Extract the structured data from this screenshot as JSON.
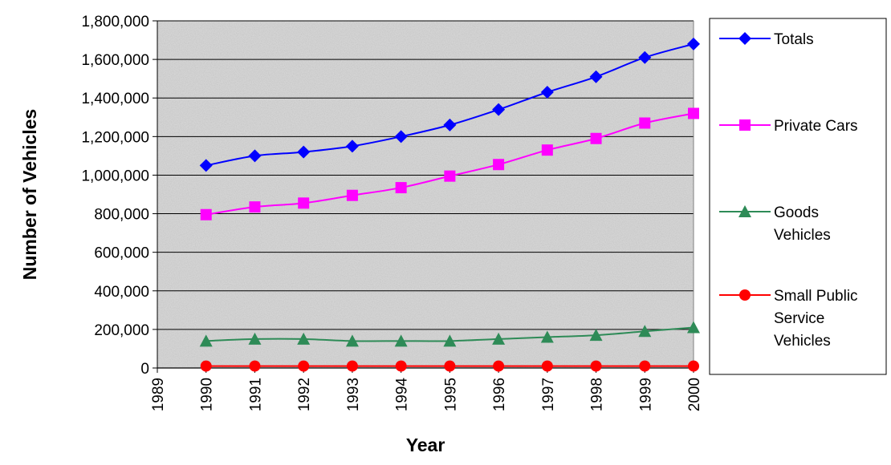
{
  "chart_data": {
    "type": "line",
    "title": "",
    "xlabel": "Year",
    "ylabel": "Number of Vehicles",
    "x": [
      1990,
      1991,
      1992,
      1993,
      1994,
      1995,
      1996,
      1997,
      1998,
      1999,
      2000
    ],
    "x_ticks": [
      "1989",
      "1990",
      "1991",
      "1992",
      "1993",
      "1994",
      "1995",
      "1996",
      "1997",
      "1998",
      "1999",
      "2000"
    ],
    "xlim": [
      1989,
      2000
    ],
    "ylim": [
      0,
      1800000
    ],
    "y_ticks": [
      "0",
      "200,000",
      "400,000",
      "600,000",
      "800,000",
      "1,000,000",
      "1,200,000",
      "1,400,000",
      "1,600,000",
      "1,800,000"
    ],
    "grid": true,
    "legend_position": "right",
    "series": [
      {
        "name": "Totals",
        "color": "#0000ff",
        "marker": "diamond",
        "values": [
          1050000,
          1100000,
          1120000,
          1150000,
          1200000,
          1260000,
          1340000,
          1430000,
          1510000,
          1610000,
          1680000
        ]
      },
      {
        "name": "Private Cars",
        "color": "#ff00ff",
        "marker": "square",
        "values": [
          795000,
          835000,
          855000,
          895000,
          935000,
          995000,
          1055000,
          1130000,
          1190000,
          1270000,
          1320000
        ]
      },
      {
        "name": "Goods Vehicles",
        "color": "#2e8b57",
        "marker": "triangle",
        "values": [
          140000,
          150000,
          150000,
          140000,
          140000,
          140000,
          150000,
          160000,
          170000,
          190000,
          210000
        ]
      },
      {
        "name": "Small Public Service Vehicles",
        "color": "#ff0000",
        "marker": "circle",
        "values": [
          10000,
          10000,
          10000,
          10000,
          10000,
          10000,
          10000,
          10000,
          10000,
          10000,
          10000
        ]
      }
    ],
    "legend": [
      {
        "lines": [
          "Totals"
        ]
      },
      {
        "lines": [
          "Private Cars"
        ]
      },
      {
        "lines": [
          "Goods",
          "Vehicles"
        ]
      },
      {
        "lines": [
          "Small Public",
          "Service",
          "Vehicles"
        ]
      }
    ]
  }
}
